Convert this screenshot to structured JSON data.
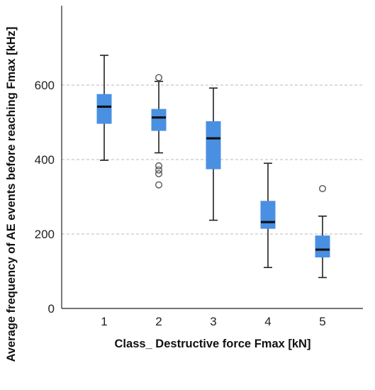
{
  "chart_data": {
    "type": "boxplot",
    "xlabel": "Class_ Destructive force Fmax [kN]",
    "ylabel": "Average frequency of AE events before reaching Fmax [kHz]",
    "categories": [
      "1",
      "2",
      "3",
      "4",
      "5"
    ],
    "ylim": [
      0,
      800
    ],
    "yticks": [
      0,
      200,
      400,
      600
    ],
    "grid": "horizontal dashed",
    "box_color": "#4a90e2",
    "median_color": "#111111",
    "series": [
      {
        "category": "1",
        "whisker_low": 398,
        "q1": 497,
        "median": 542,
        "q3": 575,
        "whisker_high": 680,
        "outliers": []
      },
      {
        "category": "2",
        "whisker_low": 418,
        "q1": 478,
        "median": 513,
        "q3": 535,
        "whisker_high": 610,
        "outliers": [
          620,
          383,
          372,
          362,
          332
        ]
      },
      {
        "category": "3",
        "whisker_low": 237,
        "q1": 375,
        "median": 457,
        "q3": 502,
        "whisker_high": 592,
        "outliers": []
      },
      {
        "category": "4",
        "whisker_low": 110,
        "q1": 215,
        "median": 232,
        "q3": 288,
        "whisker_high": 390,
        "outliers": []
      },
      {
        "category": "5",
        "whisker_low": 83,
        "q1": 138,
        "median": 158,
        "q3": 195,
        "whisker_high": 248,
        "outliers": [
          322
        ]
      }
    ]
  }
}
